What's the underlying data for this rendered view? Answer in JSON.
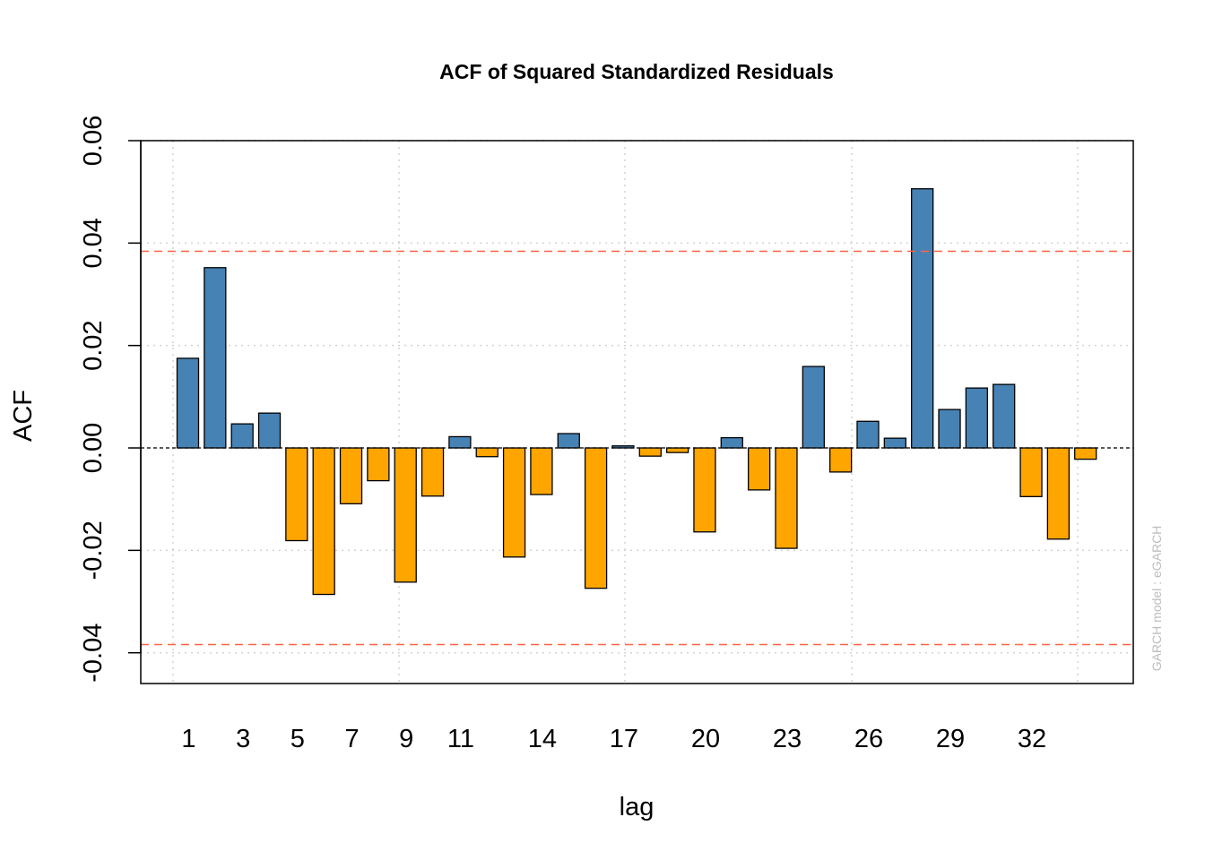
{
  "chart_data": {
    "type": "bar",
    "title": "ACF of Squared Standardized Residuals",
    "xlabel": "lag",
    "ylabel": "ACF",
    "side_note": "GARCH model :  eGARCH",
    "lags": [
      1,
      2,
      3,
      4,
      5,
      6,
      7,
      8,
      9,
      10,
      11,
      12,
      13,
      14,
      15,
      16,
      17,
      18,
      19,
      20,
      21,
      22,
      23,
      24,
      25,
      26,
      27,
      28,
      29,
      30,
      31,
      32,
      33,
      34
    ],
    "values": [
      0.0175,
      0.0352,
      0.0047,
      0.0068,
      -0.0181,
      -0.0286,
      -0.0109,
      -0.0064,
      -0.0262,
      -0.0094,
      0.0022,
      -0.0017,
      -0.0213,
      -0.0091,
      0.0028,
      -0.0274,
      0.0004,
      -0.0016,
      -0.0009,
      -0.0164,
      0.002,
      -0.0082,
      -0.0196,
      0.0159,
      -0.0047,
      0.0052,
      0.0019,
      0.0506,
      0.0075,
      0.0117,
      0.0124,
      -0.0095,
      -0.0178,
      -0.0022
    ],
    "x_tick_labels": [
      "1",
      "3",
      "5",
      "7",
      "9",
      "11",
      "14",
      "17",
      "20",
      "23",
      "26",
      "29",
      "32"
    ],
    "x_tick_lags": [
      1,
      3,
      5,
      7,
      9,
      11,
      14,
      17,
      20,
      23,
      26,
      29,
      32
    ],
    "y_ticks": [
      -0.04,
      -0.02,
      0.0,
      0.02,
      0.04,
      0.06
    ],
    "y_tick_labels": [
      "-0.04",
      "-0.02",
      "0.00",
      "0.02",
      "0.04",
      "0.06"
    ],
    "ylim": [
      -0.046,
      0.06
    ],
    "confidence_bound": 0.0384,
    "colors": {
      "positive": "#4682b4",
      "negative": "#ffa500",
      "confidence_line": "#ff6347",
      "grid": "#d3d3d3"
    },
    "grid": true
  }
}
